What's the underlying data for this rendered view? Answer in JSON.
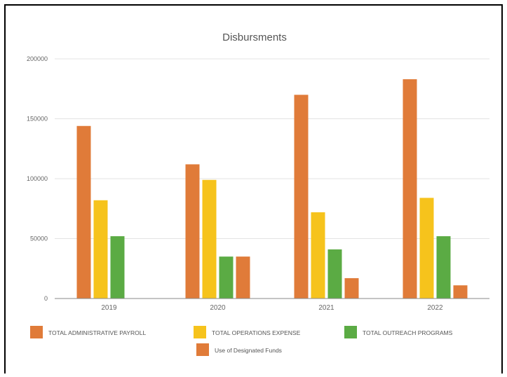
{
  "chart_data": {
    "type": "bar",
    "title": "Disbursments",
    "categories": [
      "2019",
      "2020",
      "2021",
      "2022"
    ],
    "series": [
      {
        "name": "TOTAL ADMINISTRATIVE PAYROLL",
        "color": "#e07b39",
        "values": [
          144000,
          112000,
          170000,
          183000
        ]
      },
      {
        "name": "TOTAL OPERATIONS EXPENSE",
        "color": "#f6c31c",
        "values": [
          82000,
          99000,
          72000,
          84000
        ]
      },
      {
        "name": "TOTAL OUTREACH PROGRAMS",
        "color": "#5bab44",
        "values": [
          52000,
          35000,
          41000,
          52000
        ]
      },
      {
        "name": "Use of Designated Funds",
        "color": "#e07b39",
        "values": [
          0,
          35000,
          17000,
          11000
        ]
      }
    ],
    "ylim": [
      0,
      200000
    ],
    "yticks": [
      0,
      50000,
      100000,
      150000,
      200000
    ],
    "grid": true,
    "legend_position": "bottom"
  }
}
